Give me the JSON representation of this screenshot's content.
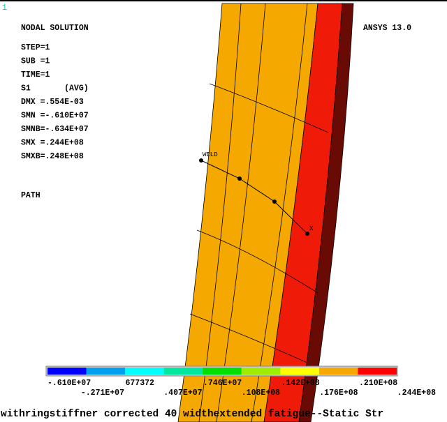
{
  "window_number": "1",
  "header": {
    "title": "NODAL SOLUTION",
    "version": "ANSYS 13.0"
  },
  "info_lines": [
    "STEP=1",
    "SUB =1",
    "TIME=1",
    "S1       (AVG)",
    "DMX =.554E-03",
    "SMN =-.610E+07",
    "SMNB=-.634E+07",
    "SMX =.244E+08",
    "SMXB=.248E+08"
  ],
  "path_label": "PATH",
  "path_points": [
    "WELD",
    "X"
  ],
  "legend": {
    "top_labels": [
      "-.610E+07",
      "677372",
      ".746E+07",
      ".142E+08",
      ".210E+08"
    ],
    "bottom_labels": [
      "-.271E+07",
      ".407E+07",
      ".108E+08",
      ".176E+08",
      ".244E+08"
    ]
  },
  "footer": "withringstiffner corrected 40 widthextended fatigue--Static Str"
}
